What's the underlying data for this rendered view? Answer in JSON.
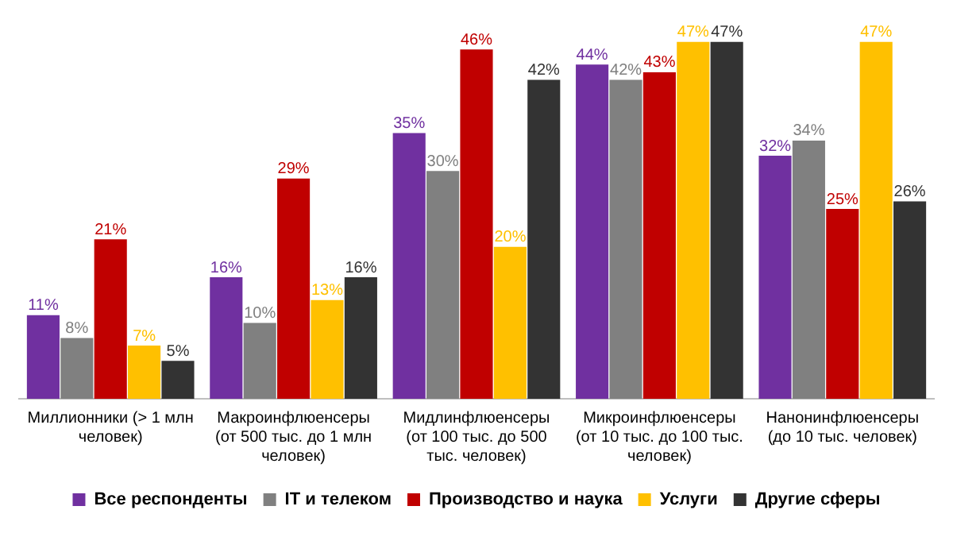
{
  "chart_data": {
    "type": "bar",
    "categories": [
      "Миллионники (> 1 млн человек)",
      "Макроинфлюенсеры (от 500 тыс. до 1 млн человек)",
      "Мидлинфлюенсеры (от 100 тыс. до 500 тыс. человек)",
      "Микроинфлюенсеры (от 10 тыс. до 100 тыс. человек)",
      "Нанонинфлюенсеры (до 10 тыс. человек)"
    ],
    "series": [
      {
        "name": "Все респонденты",
        "color": "#7030a0",
        "values": [
          11,
          16,
          35,
          44,
          32
        ],
        "value_labels": [
          "11%",
          "16%",
          "35%",
          "44%",
          "32%"
        ]
      },
      {
        "name": "IT и телеком",
        "color": "#808080",
        "values": [
          8,
          10,
          30,
          42,
          34
        ],
        "value_labels": [
          "8%",
          "10%",
          "30%",
          "42%",
          "34%"
        ]
      },
      {
        "name": "Производство и наука",
        "color": "#c00000",
        "values": [
          21,
          29,
          46,
          43,
          25
        ],
        "value_labels": [
          "21%",
          "29%",
          "46%",
          "43%",
          "25%"
        ]
      },
      {
        "name": "Услуги",
        "color": "#ffc000",
        "values": [
          7,
          13,
          20,
          47,
          47
        ],
        "value_labels": [
          "7%",
          "13%",
          "20%",
          "47%",
          "47%"
        ]
      },
      {
        "name": "Другие сферы",
        "color": "#333333",
        "values": [
          5,
          16,
          42,
          47,
          26
        ],
        "value_labels": [
          "5%",
          "16%",
          "42%",
          "47%",
          "26%"
        ]
      }
    ],
    "legend": "bottom",
    "grid": false
  }
}
